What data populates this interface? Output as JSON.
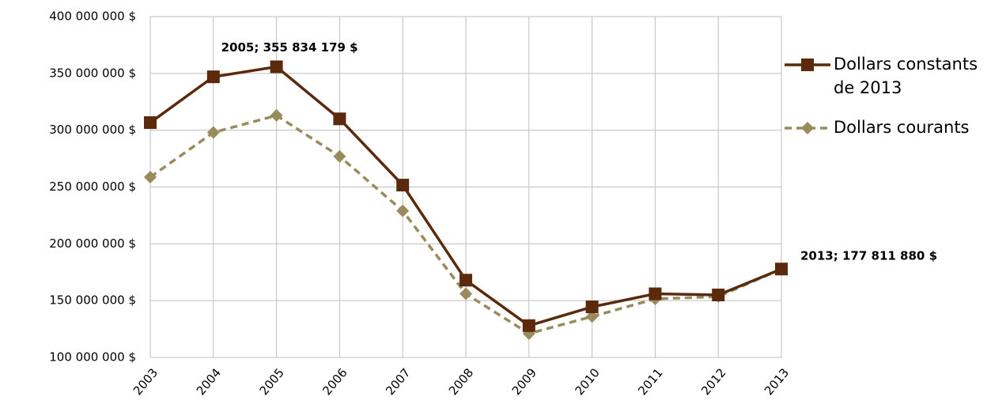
{
  "chart_data": {
    "type": "line",
    "categories": [
      "2003",
      "2004",
      "2005",
      "2006",
      "2007",
      "2008",
      "2009",
      "2010",
      "2011",
      "2012",
      "2013"
    ],
    "series": [
      {
        "name": "Dollars constants de 2013",
        "color": "#5b2a0c",
        "dashed": false,
        "marker": "square",
        "values": [
          306700000,
          347000000,
          355834179,
          310000000,
          251700000,
          168000000,
          128000000,
          144500000,
          156000000,
          155000000,
          177811880
        ],
        "value_labels": [
          null,
          null,
          "2005; 355 834 179 $",
          null,
          null,
          null,
          null,
          null,
          null,
          null,
          "2013; 177 811 880 $"
        ]
      },
      {
        "name": "Dollars courants",
        "color": "#998c5c",
        "dashed": true,
        "marker": "diamond",
        "values": [
          258700000,
          298000000,
          313000000,
          277000000,
          229000000,
          156000000,
          121000000,
          136000000,
          151500000,
          153600000,
          177811880
        ]
      }
    ],
    "ylim": [
      100000000,
      400000000
    ],
    "yticks": [
      {
        "value": 100000000,
        "label": "100 000 000 $"
      },
      {
        "value": 150000000,
        "label": "150 000 000 $"
      },
      {
        "value": 200000000,
        "label": "200 000 000 $"
      },
      {
        "value": 250000000,
        "label": "250 000 000 $"
      },
      {
        "value": 300000000,
        "label": "300 000 000 $"
      },
      {
        "value": 350000000,
        "label": "350 000 000 $"
      },
      {
        "value": 400000000,
        "label": "400 000 000 $"
      }
    ],
    "grid": true,
    "legend": "right"
  }
}
